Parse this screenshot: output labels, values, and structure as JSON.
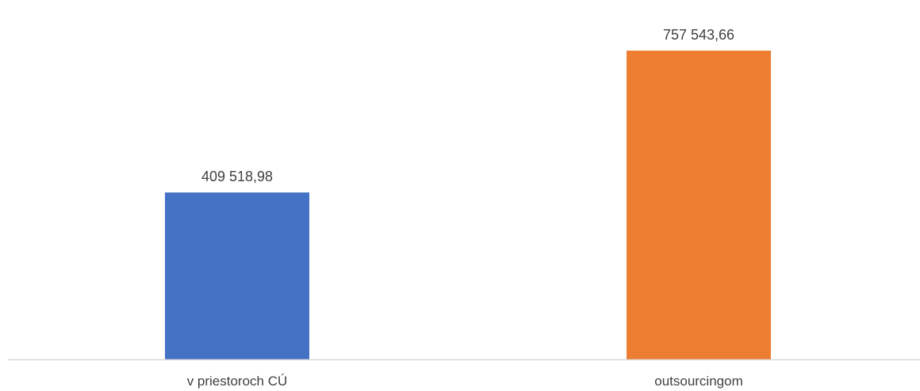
{
  "chart_data": {
    "type": "bar",
    "title": "",
    "categories": [
      "v priestoroch CÚ",
      "outsourcingom"
    ],
    "values": [
      409518.98,
      757543.66
    ],
    "value_labels": [
      "409 518,98",
      "757 543,66"
    ],
    "colors": [
      "#4472C4",
      "#ED7D31"
    ],
    "xlabel": "",
    "ylabel": "",
    "ylim": [
      0,
      800000
    ],
    "grid": false,
    "legend": "none"
  }
}
